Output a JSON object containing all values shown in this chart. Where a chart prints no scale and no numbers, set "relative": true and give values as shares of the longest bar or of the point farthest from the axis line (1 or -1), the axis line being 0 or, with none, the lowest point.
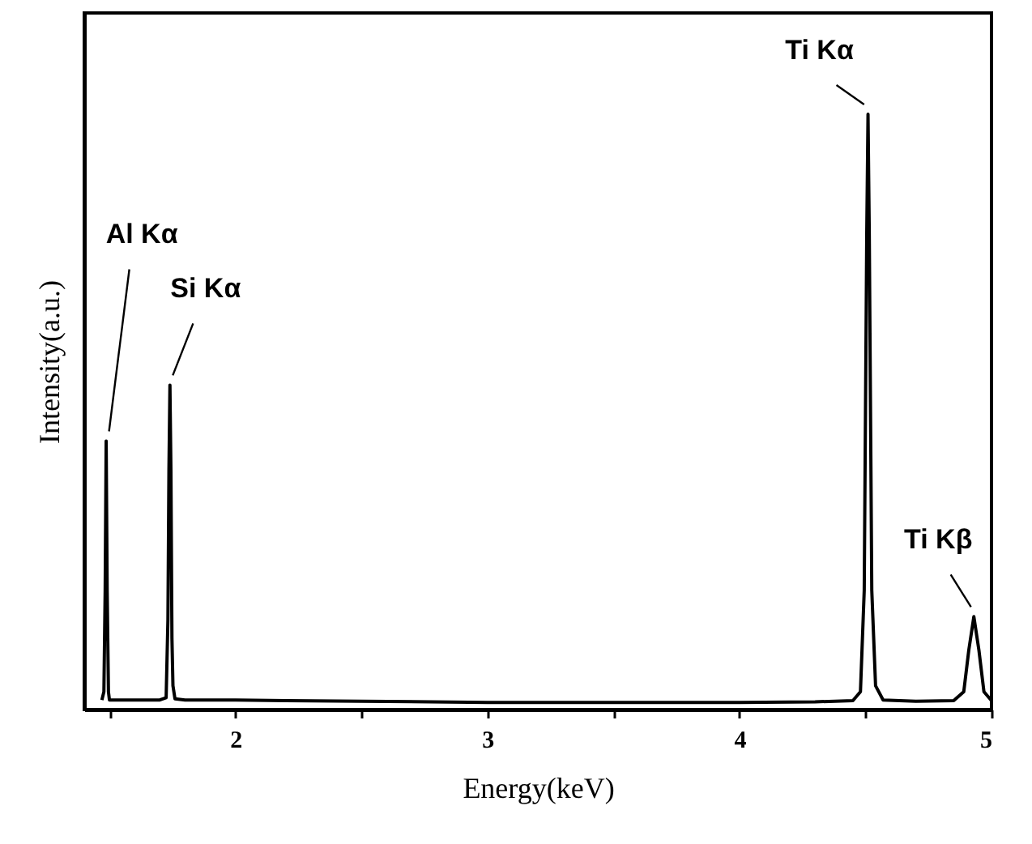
{
  "chart_data": {
    "type": "line",
    "xlabel": "Energy(keV)",
    "ylabel": "Intensity(a.u.)",
    "relative": true,
    "xlim": [
      1.4,
      5.0
    ],
    "xticks": [
      {
        "value": 1.5,
        "label": null
      },
      2,
      {
        "value": 2.5,
        "label": null
      },
      3,
      {
        "value": 3.5,
        "label": null
      },
      4,
      {
        "value": 4.5,
        "label": null
      },
      5
    ],
    "series": [
      {
        "color": "#000000",
        "x": [
          1.47,
          1.478,
          1.483,
          1.487,
          1.491,
          1.496,
          1.5,
          1.6,
          1.7,
          1.725,
          1.732,
          1.736,
          1.74,
          1.744,
          1.748,
          1.752,
          1.76,
          1.8,
          2.0,
          2.2,
          2.5,
          3.0,
          3.5,
          4.0,
          4.3,
          4.45,
          4.48,
          4.495,
          4.505,
          4.51,
          4.515,
          4.525,
          4.54,
          4.57,
          4.7,
          4.85,
          4.89,
          4.91,
          4.93,
          4.95,
          4.97,
          5.0
        ],
        "values": [
          0.016,
          0.03,
          0.2,
          0.451,
          0.2,
          0.03,
          0.016,
          0.016,
          0.016,
          0.02,
          0.15,
          0.4,
          0.545,
          0.4,
          0.12,
          0.04,
          0.018,
          0.016,
          0.016,
          0.015,
          0.014,
          0.012,
          0.012,
          0.012,
          0.013,
          0.015,
          0.03,
          0.2,
          0.8,
          1.0,
          0.8,
          0.2,
          0.04,
          0.016,
          0.014,
          0.015,
          0.03,
          0.1,
          0.156,
          0.1,
          0.03,
          0.015
        ]
      }
    ],
    "annotations": [
      {
        "text": "Al Kα",
        "x": 1.487,
        "y": 0.451
      },
      {
        "text": "Si Kα",
        "x": 1.74,
        "y": 0.545
      },
      {
        "text": "Ti Kα",
        "x": 4.51,
        "y": 1.0
      },
      {
        "text": "Ti Kβ",
        "x": 4.93,
        "y": 0.156
      }
    ],
    "marker": "none",
    "grid": false
  }
}
